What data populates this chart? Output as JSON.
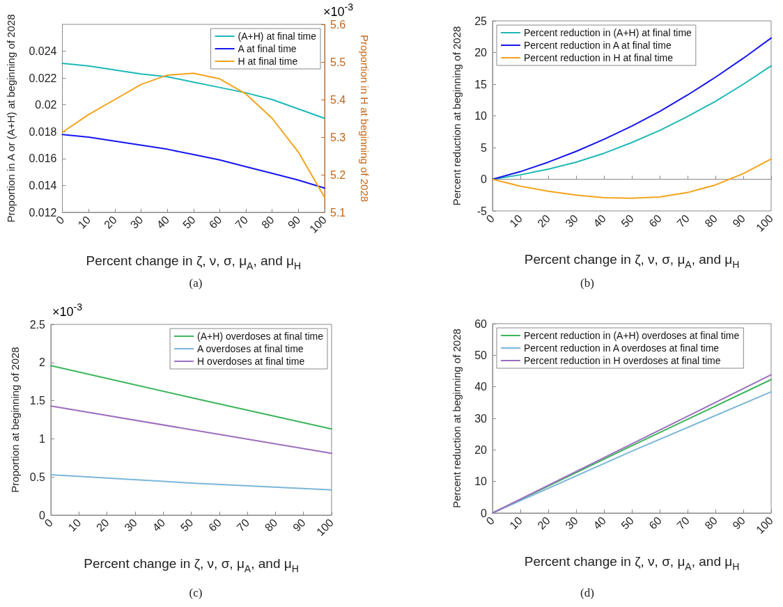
{
  "chart_data": [
    {
      "type": "line",
      "xlabel": "Percent change in ζ, ν, σ, μ$_{A}$, and μ$_{H}$",
      "ylabel": "Proportion in A or (A+H) at beginning of 2028",
      "y2label": "Proportion in H at beginning of 2028",
      "xlim": [
        0,
        100
      ],
      "xticks": [
        0,
        10,
        20,
        30,
        40,
        50,
        60,
        70,
        80,
        90,
        100
      ],
      "ylim": [
        0.012,
        0.026
      ],
      "yticks": [
        0.012,
        0.014,
        0.016,
        0.018,
        0.02,
        0.022,
        0.024
      ],
      "y2lim": [
        5.1,
        5.6
      ],
      "y2ticks": [
        5.1,
        5.2,
        5.3,
        5.4,
        5.5,
        5.6
      ],
      "legend": "top right",
      "annotations": [
        "×10$^{-3}$",
        "(a)"
      ],
      "x": [
        0,
        10,
        20,
        30,
        40,
        50,
        60,
        70,
        80,
        90,
        100
      ],
      "series": [
        {
          "name": "(A+H) at final time",
          "color": "#1db8b8",
          "values": [
            0.0231,
            0.0229,
            0.0226,
            0.0223,
            0.0221,
            0.0217,
            0.0213,
            0.0209,
            0.0204,
            0.0197,
            0.019
          ]
        },
        {
          "name": "A at final time",
          "color": "#1515f0",
          "values": [
            0.0178,
            0.0176,
            0.0173,
            0.017,
            0.0167,
            0.0163,
            0.0159,
            0.0154,
            0.0149,
            0.0144,
            0.0138
          ]
        },
        {
          "name": "H at final time",
          "color": "#f5a31a",
          "axis": "y2",
          "values": [
            5.313,
            5.36,
            5.4,
            5.44,
            5.465,
            5.47,
            5.455,
            5.415,
            5.35,
            5.26,
            5.14
          ]
        }
      ]
    },
    {
      "type": "line",
      "xlabel": "Percent change in ζ, ν, σ, μ$_{A}$, and μ$_{H}$",
      "ylabel": "Percent reduction at beginning of 2028",
      "xlim": [
        0,
        100
      ],
      "xticks": [
        0,
        10,
        20,
        30,
        40,
        50,
        60,
        70,
        80,
        90,
        100
      ],
      "ylim": [
        -5,
        25
      ],
      "yticks": [
        -5,
        0,
        5,
        10,
        15,
        20,
        25
      ],
      "legend": "top left",
      "annotations": [
        "(b)"
      ],
      "x": [
        0,
        10,
        20,
        30,
        40,
        50,
        60,
        70,
        80,
        90,
        100
      ],
      "series": [
        {
          "name": "Percent reduction in (A+H) at final time",
          "color": "#1db8b8",
          "values": [
            0,
            0.7,
            1.6,
            2.7,
            4.1,
            5.8,
            7.7,
            9.9,
            12.3,
            15.0,
            17.9
          ]
        },
        {
          "name": "Percent reduction in A at final time",
          "color": "#1515f0",
          "values": [
            0,
            1.2,
            2.7,
            4.4,
            6.3,
            8.4,
            10.7,
            13.3,
            16.1,
            19.1,
            22.3
          ]
        },
        {
          "name": "Percent reduction in H at final time",
          "color": "#f5a31a",
          "values": [
            0,
            -1.1,
            -1.9,
            -2.5,
            -2.9,
            -3.0,
            -2.8,
            -2.1,
            -0.9,
            0.9,
            3.2
          ]
        }
      ]
    },
    {
      "type": "line",
      "xlabel": "Percent change in ζ, ν, σ, μ$_{A}$, and μ$_{H}$",
      "ylabel": "Proportion at beginning of 2028",
      "xlim": [
        0,
        100
      ],
      "xticks": [
        0,
        10,
        20,
        30,
        40,
        50,
        60,
        70,
        80,
        90,
        100
      ],
      "ylim": [
        0,
        2.5
      ],
      "yticks": [
        0,
        0.5,
        1,
        1.5,
        2,
        2.5
      ],
      "legend": "top right",
      "annotations": [
        "×10$^{-3}$",
        "(c)"
      ],
      "x": [
        0,
        50,
        100
      ],
      "series": [
        {
          "name": "(A+H) overdoses at final time",
          "color": "#3cb55a",
          "values": [
            1.96,
            1.54,
            1.13
          ]
        },
        {
          "name": "A overdoses at final time",
          "color": "#7ab6d9",
          "values": [
            0.53,
            0.42,
            0.33
          ]
        },
        {
          "name": "H overdoses at final time",
          "color": "#9b6fbf",
          "values": [
            1.43,
            1.12,
            0.81
          ]
        }
      ]
    },
    {
      "type": "line",
      "xlabel": "Percent change in ζ, ν, σ, μ$_{A}$, and μ$_{H}$",
      "ylabel": "Percent reduction at beginning of 2028",
      "xlim": [
        0,
        100
      ],
      "xticks": [
        0,
        10,
        20,
        30,
        40,
        50,
        60,
        70,
        80,
        90,
        100
      ],
      "ylim": [
        0,
        60
      ],
      "yticks": [
        0,
        10,
        20,
        30,
        40,
        50,
        60
      ],
      "legend": "top left",
      "annotations": [
        "(d)"
      ],
      "x": [
        0,
        50,
        100
      ],
      "series": [
        {
          "name": "Percent reduction in (A+H) overdoses at final time",
          "color": "#3cb55a",
          "values": [
            0,
            21.3,
            42.3
          ]
        },
        {
          "name": "Percent reduction in A overdoses at final time",
          "color": "#7ab6d9",
          "values": [
            0,
            19.6,
            38.4
          ]
        },
        {
          "name": "Percent reduction in H overdoses at final time",
          "color": "#9b6fbf",
          "values": [
            0,
            21.9,
            43.8
          ]
        }
      ]
    }
  ]
}
